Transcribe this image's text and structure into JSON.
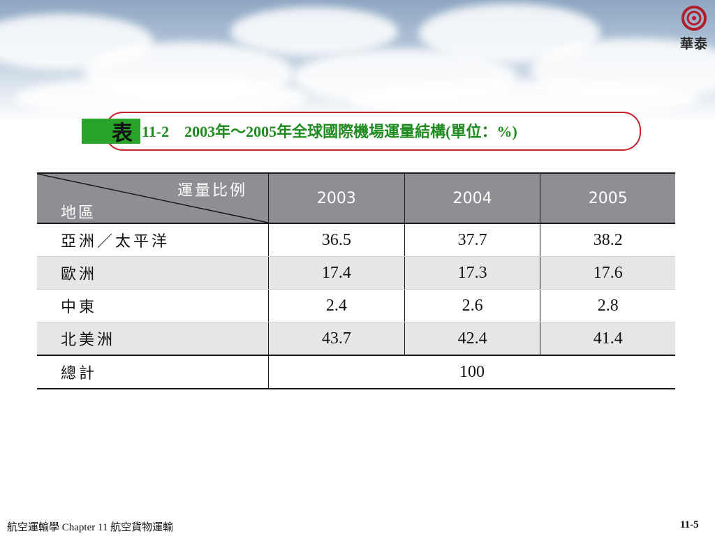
{
  "brand": {
    "logo_text": "華泰",
    "logo_color": "#b01e2a"
  },
  "caption": {
    "label": "表",
    "title": "11-2　2003年～2005年全球國際機場運量結構(單位：%)"
  },
  "table": {
    "header_top": "運量比例",
    "header_bottom": "地區",
    "years": [
      "2003",
      "2004",
      "2005"
    ],
    "rows": [
      {
        "region": "亞洲／太平洋",
        "values": [
          "36.5",
          "37.7",
          "38.2"
        ]
      },
      {
        "region": "歐洲",
        "values": [
          "17.4",
          "17.3",
          "17.6"
        ]
      },
      {
        "region": "中東",
        "values": [
          "2.4",
          "2.6",
          "2.8"
        ]
      },
      {
        "region": "北美洲",
        "values": [
          "43.7",
          "42.4",
          "41.4"
        ]
      }
    ],
    "total_label": "總計",
    "total_value": "100"
  },
  "footer": {
    "left": "航空運輸學 Chapter 11 航空貨物運輸",
    "page": "11-5"
  },
  "colors": {
    "header_bg": "#8f8f93",
    "alt_row_bg": "#e6e6e8",
    "caption_border": "#c7202a",
    "caption_green": "#29a329",
    "caption_text": "#1f8a1f"
  }
}
